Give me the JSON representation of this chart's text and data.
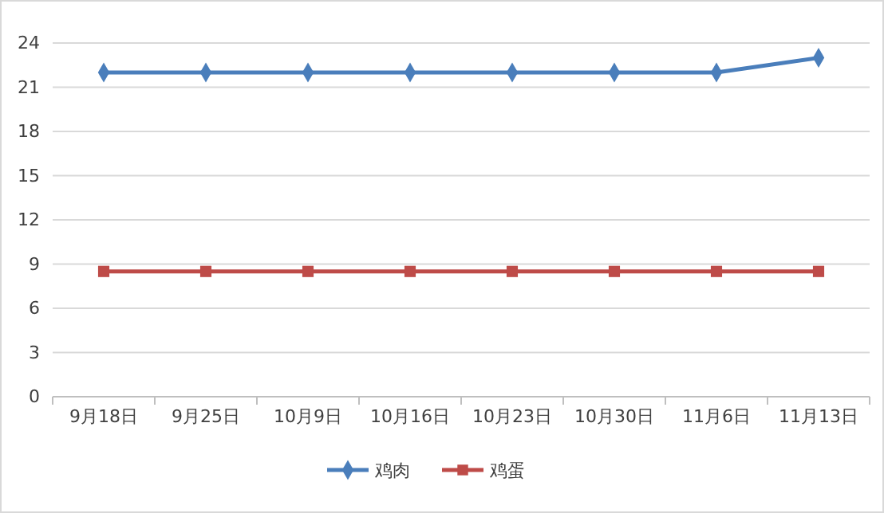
{
  "chart_data": {
    "type": "line",
    "categories": [
      "9月18日",
      "9月25日",
      "10月9日",
      "10月16日",
      "10月23日",
      "10月30日",
      "11月6日",
      "11月13日"
    ],
    "series": [
      {
        "name": "鸡肉",
        "color": "#4a7ebb",
        "marker": "diamond",
        "values": [
          22,
          22,
          22,
          22,
          22,
          22,
          22,
          23
        ]
      },
      {
        "name": "鸡蛋",
        "color": "#be4b48",
        "marker": "square",
        "values": [
          8.5,
          8.5,
          8.5,
          8.5,
          8.5,
          8.5,
          8.5,
          8.5
        ]
      }
    ],
    "ylim": [
      0,
      24
    ],
    "yticks": [
      0,
      3,
      6,
      9,
      12,
      15,
      18,
      21,
      24
    ],
    "grid": "y",
    "legend": "bottom",
    "line_style": "solid"
  }
}
